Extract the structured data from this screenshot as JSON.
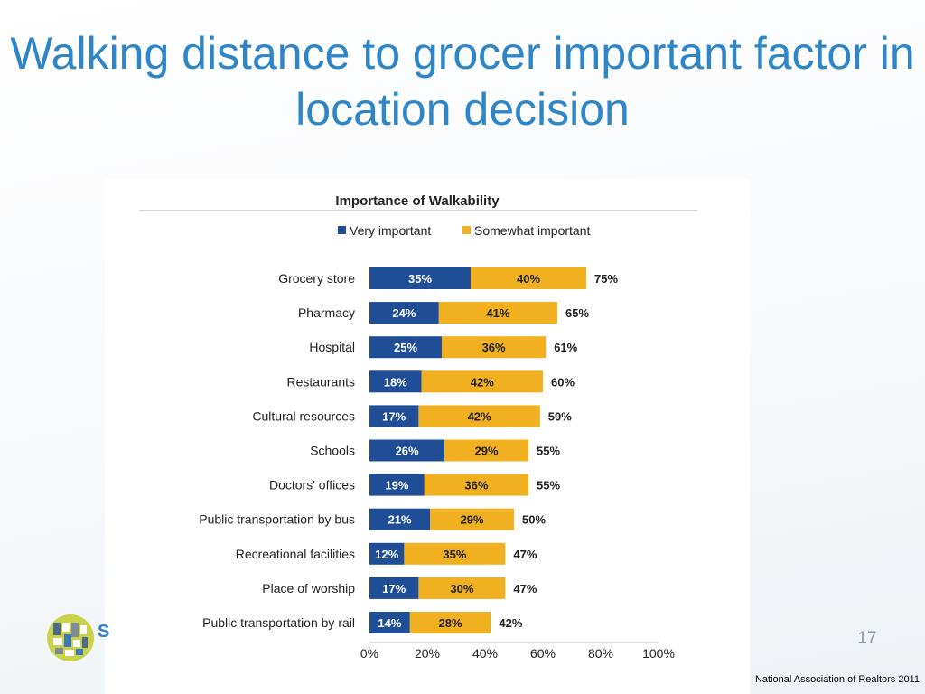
{
  "slide": {
    "title": "Walking distance to grocer important factor in location decision",
    "page_number": "17",
    "source": "National Association of Realtors 2011",
    "logo_fragment": "S"
  },
  "colors": {
    "title": "#2e86c9",
    "very_important": "#1f4e96",
    "somewhat_important": "#f0b01f"
  },
  "chart_data": {
    "type": "bar",
    "orientation": "horizontal",
    "stacked": true,
    "title": "Importance of Walkability",
    "categories": [
      "Grocery store",
      "Pharmacy",
      "Hospital",
      "Restaurants",
      "Cultural resources",
      "Schools",
      "Doctors' offices",
      "Public transportation by bus",
      "Recreational facilities",
      "Place of worship",
      "Public transportation by rail"
    ],
    "series": [
      {
        "name": "Very important",
        "values": [
          35,
          24,
          25,
          18,
          17,
          26,
          19,
          21,
          12,
          17,
          14
        ]
      },
      {
        "name": "Somewhat important",
        "values": [
          40,
          41,
          36,
          42,
          42,
          29,
          36,
          29,
          35,
          30,
          28
        ]
      }
    ],
    "totals": [
      75,
      65,
      61,
      60,
      59,
      55,
      55,
      50,
      47,
      47,
      42
    ],
    "value_suffix": "%",
    "xlim": [
      0,
      100
    ],
    "xticks": [
      "0%",
      "20%",
      "40%",
      "60%",
      "80%",
      "100%"
    ],
    "xlabel": "",
    "ylabel": "",
    "legend": "top",
    "grid": false
  }
}
